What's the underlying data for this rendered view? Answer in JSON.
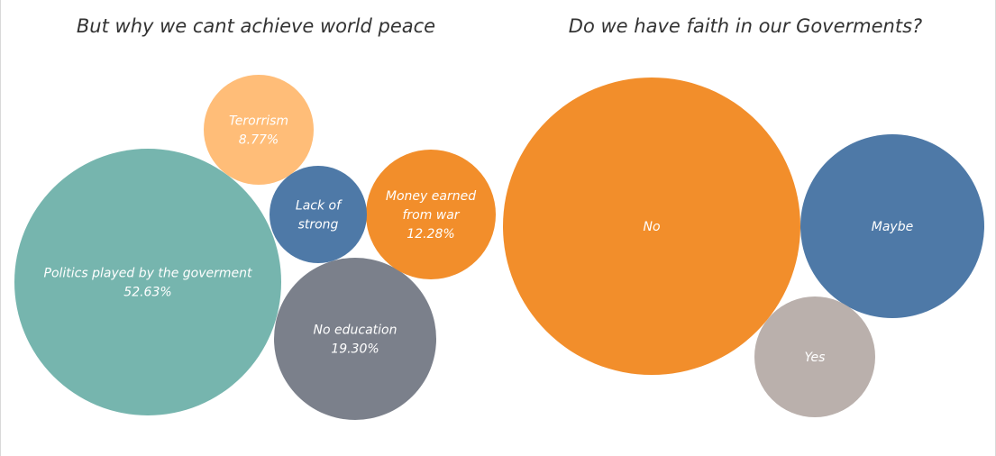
{
  "chart_data": [
    {
      "type": "bubble",
      "title": "But why we cant achieve world peace",
      "bubbles": [
        {
          "label": [
            "Politics played by the goverment"
          ],
          "value_label": "52.63%",
          "value": 52.63,
          "color": "#76b5ae"
        },
        {
          "label": [
            "No education"
          ],
          "value_label": "19.30%",
          "value": 19.3,
          "color": "#7b808b"
        },
        {
          "label": [
            "Money earned",
            "from war"
          ],
          "value_label": "12.28%",
          "value": 12.28,
          "color": "#f28e2b"
        },
        {
          "label": [
            "Terorrism"
          ],
          "value_label": "8.77%",
          "value": 8.77,
          "color": "#ffbd78"
        },
        {
          "label": [
            "Lack of",
            "strong"
          ],
          "value_label": "",
          "value": 7.02,
          "color": "#4e79a7"
        }
      ]
    },
    {
      "type": "bubble",
      "title": "Do we have faith in our Goverments?",
      "bubbles": [
        {
          "label": [
            "No"
          ],
          "value_label": "",
          "value": 64,
          "color": "#f28e2b"
        },
        {
          "label": [
            "Maybe"
          ],
          "value_label": "",
          "value": 24,
          "color": "#4e79a7"
        },
        {
          "label": [
            "Yes"
          ],
          "value_label": "",
          "value": 12,
          "color": "#bab0ac"
        }
      ]
    }
  ]
}
